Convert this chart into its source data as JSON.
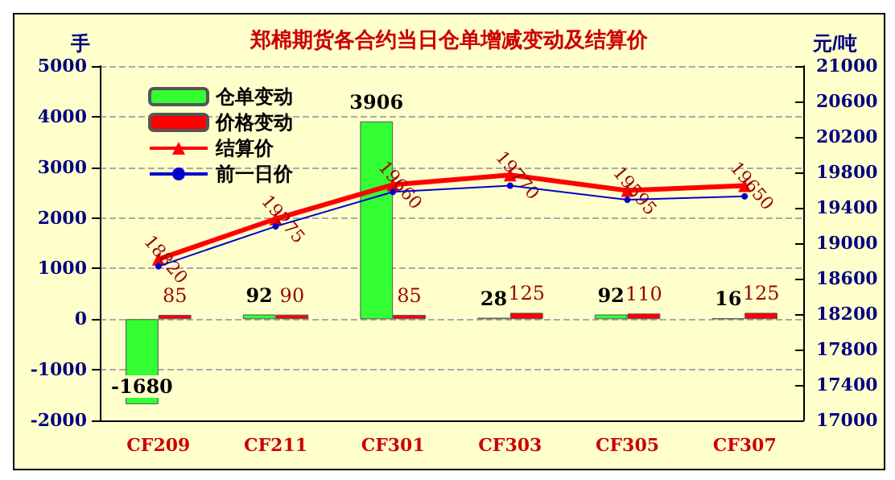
{
  "chart_data": {
    "type": "bar",
    "title": "郑棉期货各合约当日仓单增减变动及结算价",
    "ylabel": "手",
    "y2label": "元/吨",
    "categories": [
      "CF209",
      "CF211",
      "CF301",
      "CF303",
      "CF305",
      "CF307"
    ],
    "series": [
      {
        "name": "仓单变动",
        "color": "#33ff33",
        "values": [
          -1680,
          92,
          3906,
          28,
          92,
          16
        ]
      },
      {
        "name": "价格变动",
        "color": "#ff0000",
        "values": [
          85,
          90,
          85,
          125,
          110,
          125
        ]
      },
      {
        "name": "结算价",
        "type": "line",
        "axis": "y2",
        "color": "#ff0000",
        "marker": "triangle",
        "values": [
          18820,
          19275,
          19660,
          19770,
          19595,
          19650
        ]
      },
      {
        "name": "前一日价",
        "type": "line",
        "axis": "y2",
        "color": "#0000cc",
        "marker": "circle",
        "data_labels": false,
        "values": [
          18740,
          19190,
          19580,
          19650,
          19490,
          19530
        ]
      }
    ],
    "ylim": [
      -2000,
      5000
    ],
    "yticks": [
      -2000,
      -1000,
      0,
      1000,
      2000,
      3000,
      4000,
      5000
    ],
    "y2lim": [
      17000,
      21000
    ],
    "y2ticks": [
      17000,
      17400,
      17800,
      18200,
      18600,
      19000,
      19400,
      19800,
      20200,
      20600,
      21000
    ],
    "grid": "y",
    "legend": "top left",
    "data_labels": true
  }
}
